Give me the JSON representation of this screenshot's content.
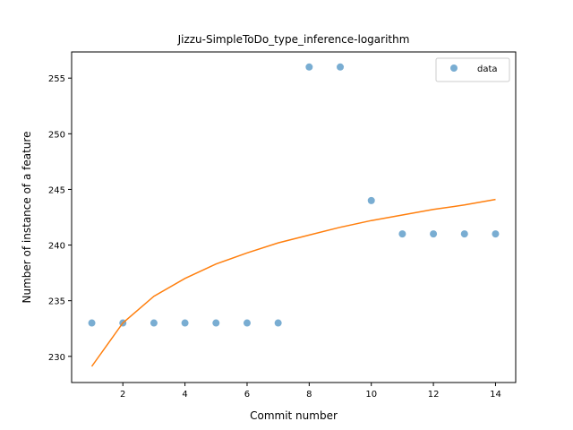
{
  "chart_data": {
    "type": "scatter",
    "title": "Jizzu-SimpleToDo_type_inference-logarithm",
    "xlabel": "Commit number",
    "ylabel": "Number of instance of a feature",
    "xlim": [
      0.35,
      14.65
    ],
    "ylim": [
      227.65,
      257.35
    ],
    "xticks": [
      2,
      4,
      6,
      8,
      10,
      12,
      14
    ],
    "yticks": [
      230,
      235,
      240,
      245,
      250,
      255
    ],
    "grid": false,
    "legend_position": "top-right",
    "series": [
      {
        "name": "data",
        "kind": "scatter",
        "color": "#1f77b4",
        "x": [
          1,
          2,
          3,
          4,
          5,
          6,
          7,
          8,
          9,
          10,
          11,
          12,
          13,
          14
        ],
        "y": [
          233,
          233,
          233,
          233,
          233,
          233,
          233,
          256,
          256,
          244,
          241,
          241,
          241,
          241
        ]
      },
      {
        "kind": "line",
        "color": "#ff7f0e",
        "x": [
          1,
          2,
          3,
          4,
          5,
          6,
          7,
          8,
          9,
          10,
          11,
          12,
          13,
          14
        ],
        "y": [
          229.1,
          233.0,
          235.4,
          237.0,
          238.3,
          239.3,
          240.2,
          240.9,
          241.6,
          242.2,
          242.7,
          243.2,
          243.6,
          244.1
        ]
      }
    ]
  }
}
